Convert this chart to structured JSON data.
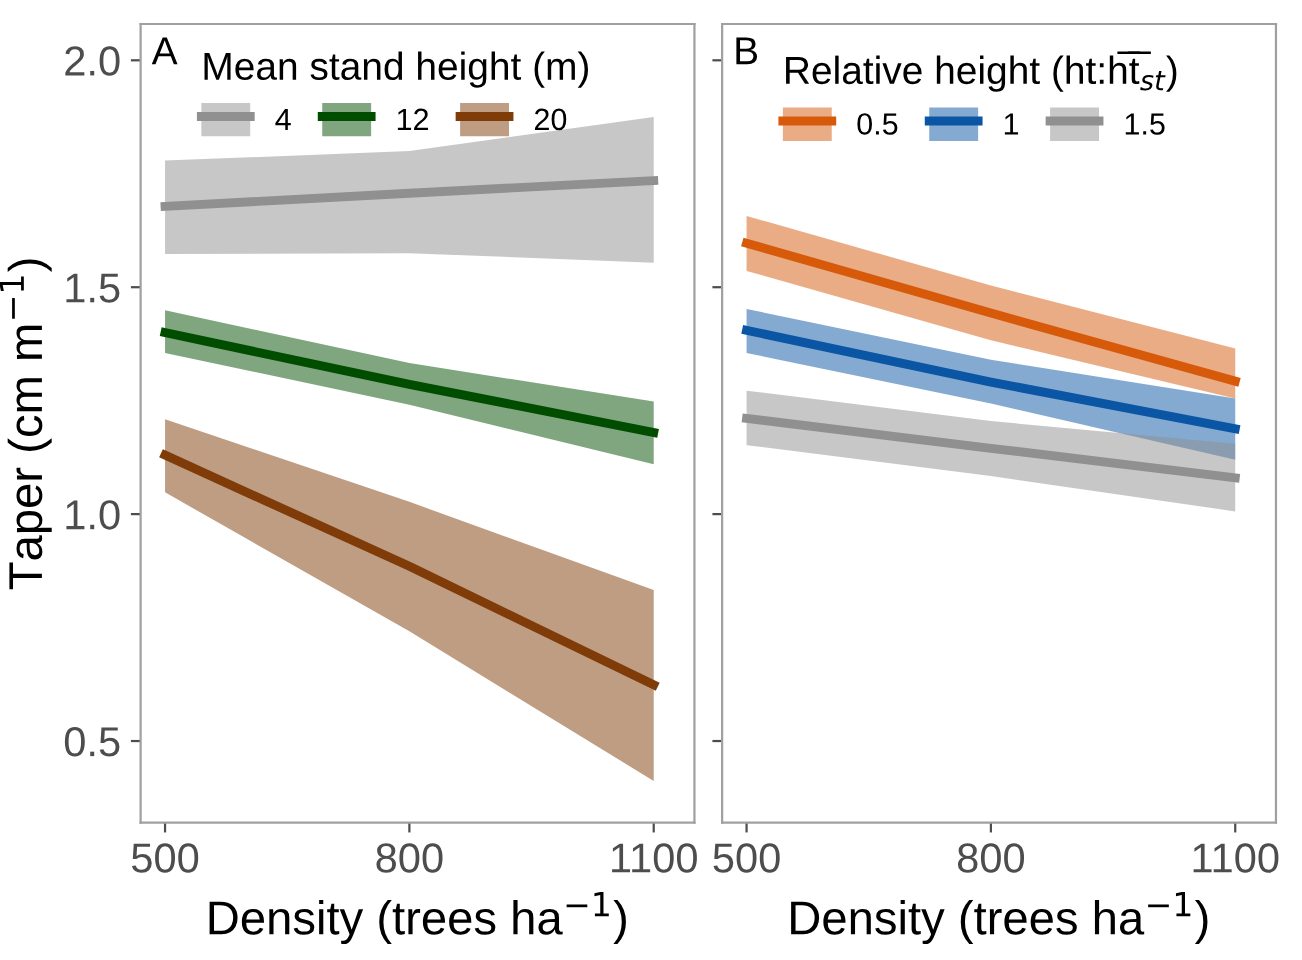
{
  "chart_data": [
    {
      "type": "line",
      "xlabel": "Density (trees ha$^{−1}$)",
      "ylabel": "Taper (cm m$^{−1}$)",
      "legend_title": "Mean stand height (m)",
      "annotations": [
        "A"
      ],
      "x": [
        500,
        800,
        1100
      ],
      "xlim": [
        470,
        1150
      ],
      "ylim": [
        0.32,
        2.08
      ],
      "xticks": [
        500,
        800,
        1100
      ],
      "yticks": [
        0.5,
        {
          "value": 1,
          "label": "1.0"
        },
        1.5,
        {
          "value": 2,
          "label": "2.0"
        }
      ],
      "legend": "top left",
      "grid": false,
      "series": [
        {
          "name": "4",
          "color": "#909090",
          "values": [
            1.678,
            1.707,
            1.735
          ],
          "lower": [
            1.573,
            1.575,
            1.554
          ],
          "upper": [
            1.779,
            1.8,
            1.875
          ]
        },
        {
          "name": "12",
          "color": "#004d00",
          "values": [
            1.4,
            1.286,
            1.18
          ],
          "lower": [
            1.355,
            1.241,
            1.11
          ],
          "upper": [
            1.449,
            1.333,
            1.248
          ]
        },
        {
          "name": "20",
          "color": "#7f3b08",
          "values": [
            1.13,
            0.885,
            0.624
          ],
          "lower": [
            1.048,
            0.742,
            0.412
          ],
          "upper": [
            1.209,
            1.027,
            0.833
          ]
        }
      ]
    },
    {
      "type": "line",
      "xlabel": "Density (trees ha$^{−1}$)",
      "legend_title": "Relative height (ht:h̅t̅$_{st}$)",
      "annotations": [
        "B"
      ],
      "x": [
        500,
        800,
        1100
      ],
      "xlim": [
        470,
        1150
      ],
      "ylim": [
        0.32,
        2.08
      ],
      "xticks": [
        500,
        800,
        1100
      ],
      "yticks": [
        0.5,
        1.0,
        1.5,
        2.0
      ],
      "tick_labels": "x",
      "legend": "top left",
      "grid": false,
      "series": [
        {
          "name": "0.5",
          "color": "#d65a0a",
          "values": [
            1.597,
            1.443,
            1.293
          ],
          "lower": [
            1.536,
            1.383,
            1.255
          ],
          "upper": [
            1.657,
            1.504,
            1.365
          ]
        },
        {
          "name": "1",
          "color": "#0b56a4",
          "values": [
            1.405,
            1.291,
            1.188
          ],
          "lower": [
            1.355,
            1.244,
            1.12
          ],
          "upper": [
            1.452,
            1.34,
            1.255
          ]
        },
        {
          "name": "1.5",
          "color": "#909090",
          "values": [
            1.211,
            1.145,
            1.08
          ],
          "lower": [
            1.152,
            1.084,
            1.006
          ],
          "upper": [
            1.272,
            1.205,
            1.155
          ]
        }
      ]
    }
  ]
}
